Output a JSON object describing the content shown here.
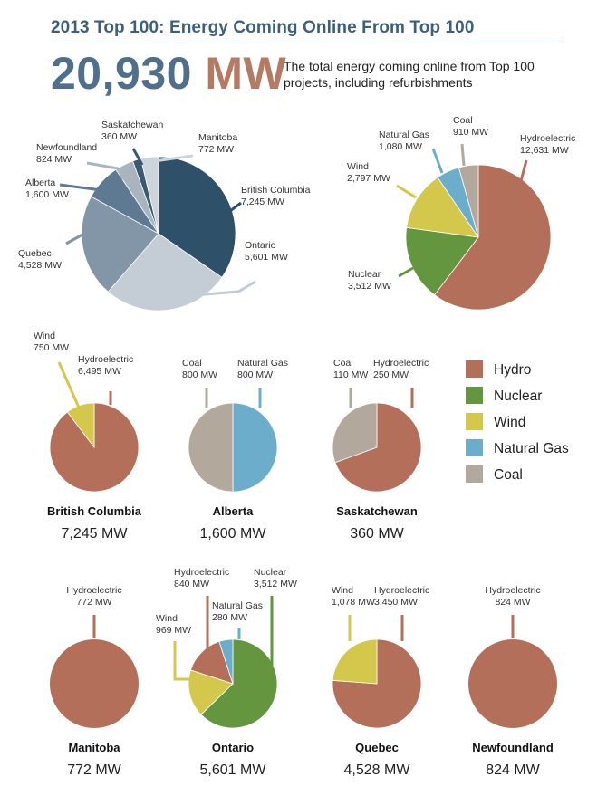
{
  "header": {
    "title": "2013 Top 100: Energy Coming Online From Top 100",
    "big_number": "20,930",
    "big_unit": "MW",
    "description": "The total energy coming online from Top 100 projects, including refurbishments"
  },
  "colors": {
    "Hydro": "#b46f5a",
    "Nuclear": "#63963f",
    "Wind": "#d3c84c",
    "Natural Gas": "#6cadcb",
    "Coal": "#b3a89c"
  },
  "legend": [
    "Hydro",
    "Nuclear",
    "Wind",
    "Natural Gas",
    "Coal"
  ],
  "chart_data": [
    {
      "type": "pie",
      "title": "",
      "units": "MW",
      "slices": [
        {
          "label": "British Columbia",
          "value": 7245,
          "value_label": "7,245 MW",
          "color": "#2e5069"
        },
        {
          "label": "Ontario",
          "value": 5601,
          "value_label": "5,601 MW",
          "color": "#c4ccd6"
        },
        {
          "label": "Quebec",
          "value": 4528,
          "value_label": "4,528 MW",
          "color": "#8296a8"
        },
        {
          "label": "Alberta",
          "value": 1600,
          "value_label": "1,600 MW",
          "color": "#5e7a92"
        },
        {
          "label": "Newfoundland",
          "value": 824,
          "value_label": "824 MW",
          "color": "#a9b4bf"
        },
        {
          "label": "Saskatchewan",
          "value": 360,
          "value_label": "360 MW",
          "color": "#3b5a72"
        },
        {
          "label": "Manitoba",
          "value": 772,
          "value_label": "772 MW",
          "color": "#cdd4db"
        }
      ]
    },
    {
      "type": "pie",
      "title": "",
      "units": "MW",
      "slices": [
        {
          "label": "Hydroelectric",
          "value": 12631,
          "value_label": "12,631 MW",
          "color": "#b46f5a"
        },
        {
          "label": "Nuclear",
          "value": 3512,
          "value_label": "3,512 MW",
          "color": "#63963f"
        },
        {
          "label": "Wind",
          "value": 2797,
          "value_label": "2,797 MW",
          "color": "#d3c84c"
        },
        {
          "label": "Natural Gas",
          "value": 1080,
          "value_label": "1,080 MW",
          "color": "#6cadcb"
        },
        {
          "label": "Coal",
          "value": 910,
          "value_label": "910 MW",
          "color": "#b3a89c"
        }
      ]
    },
    {
      "type": "pie",
      "title": "British Columbia",
      "total": "7,245 MW",
      "slices": [
        {
          "label": "Hydroelectric",
          "value": 6495,
          "value_label": "6,495 MW",
          "color": "#b46f5a"
        },
        {
          "label": "Wind",
          "value": 750,
          "value_label": "750 MW",
          "color": "#d3c84c"
        }
      ]
    },
    {
      "type": "pie",
      "title": "Alberta",
      "total": "1,600 MW",
      "slices": [
        {
          "label": "Natural Gas",
          "value": 800,
          "value_label": "800 MW",
          "color": "#6cadcb"
        },
        {
          "label": "Coal",
          "value": 800,
          "value_label": "800 MW",
          "color": "#b3a89c"
        }
      ]
    },
    {
      "type": "pie",
      "title": "Saskatchewan",
      "total": "360 MW",
      "slices": [
        {
          "label": "Hydroelectric",
          "value": 250,
          "value_label": "250 MW",
          "color": "#b46f5a"
        },
        {
          "label": "Coal",
          "value": 110,
          "value_label": "110 MW",
          "color": "#b3a89c"
        }
      ]
    },
    {
      "type": "pie",
      "title": "Manitoba",
      "total": "772 MW",
      "slices": [
        {
          "label": "Hydroelectric",
          "value": 772,
          "value_label": "772 MW",
          "color": "#b46f5a"
        }
      ]
    },
    {
      "type": "pie",
      "title": "Ontario",
      "total": "5,601 MW",
      "slices": [
        {
          "label": "Nuclear",
          "value": 3512,
          "value_label": "3,512 MW",
          "color": "#63963f"
        },
        {
          "label": "Wind",
          "value": 969,
          "value_label": "969 MW",
          "color": "#d3c84c"
        },
        {
          "label": "Hydroelectric",
          "value": 840,
          "value_label": "840 MW",
          "color": "#b46f5a"
        },
        {
          "label": "Natural Gas",
          "value": 280,
          "value_label": "280 MW",
          "color": "#6cadcb"
        }
      ]
    },
    {
      "type": "pie",
      "title": "Quebec",
      "total": "4,528 MW",
      "slices": [
        {
          "label": "Hydroelectric",
          "value": 3450,
          "value_label": "3,450 MW",
          "color": "#b46f5a"
        },
        {
          "label": "Wind",
          "value": 1078,
          "value_label": "1,078 MW",
          "color": "#d3c84c"
        }
      ]
    },
    {
      "type": "pie",
      "title": "Newfoundland",
      "total": "824 MW",
      "slices": [
        {
          "label": "Hydroelectric",
          "value": 824,
          "value_label": "824 MW",
          "color": "#b46f5a"
        }
      ]
    }
  ]
}
